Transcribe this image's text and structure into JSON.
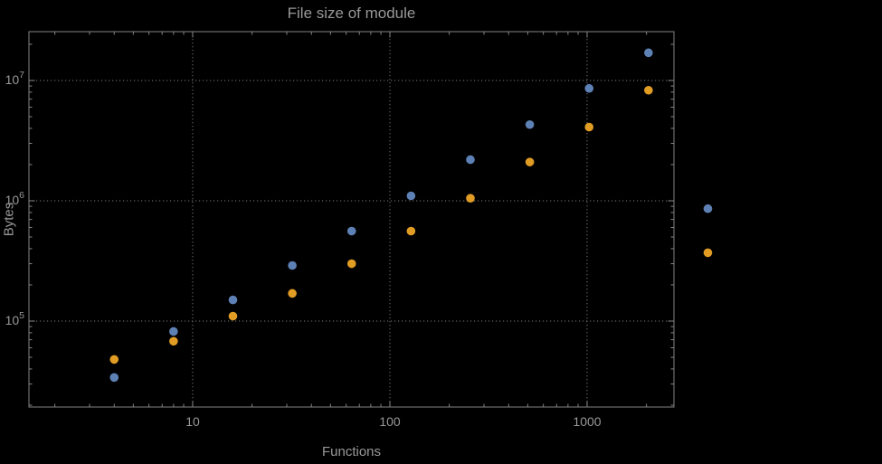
{
  "chart_data": {
    "type": "scatter",
    "title": "File size of module",
    "xlabel": "Functions",
    "ylabel": "Bytes",
    "x_scale": "log",
    "y_scale": "log",
    "grid": "dotted at major ticks only",
    "legend": "none",
    "x_ticks": [
      10,
      100,
      1000
    ],
    "x_tick_labels": [
      "10",
      "100",
      "1000"
    ],
    "y_ticks": [
      100000,
      1000000,
      10000000
    ],
    "y_tick_labels": [
      {
        "base": "10",
        "exp": "5"
      },
      {
        "base": "10",
        "exp": "6"
      },
      {
        "base": "10",
        "exp": "7"
      }
    ],
    "x_range": [
      1.5,
      2750
    ],
    "y_range": [
      20000,
      25000000
    ],
    "x": [
      4,
      8,
      16,
      32,
      64,
      128,
      256,
      512,
      1024,
      2048,
      4096
    ],
    "series": [
      {
        "name": "series-1-blue",
        "color": "#5e81b5",
        "values": [
          34000,
          82000,
          150000,
          290000,
          560000,
          1100000,
          2200000,
          4300000,
          8600000,
          17000000,
          860000
        ]
      },
      {
        "name": "series-2-orange",
        "color": "#e19c24",
        "values": [
          48000,
          68000,
          110000,
          170000,
          300000,
          560000,
          1050000,
          2100000,
          4100000,
          8300000,
          370000
        ]
      }
    ]
  },
  "style": {
    "background": "#000000",
    "text_color": "#989898",
    "frame_color": "#848484",
    "grid_color": "#626262"
  }
}
